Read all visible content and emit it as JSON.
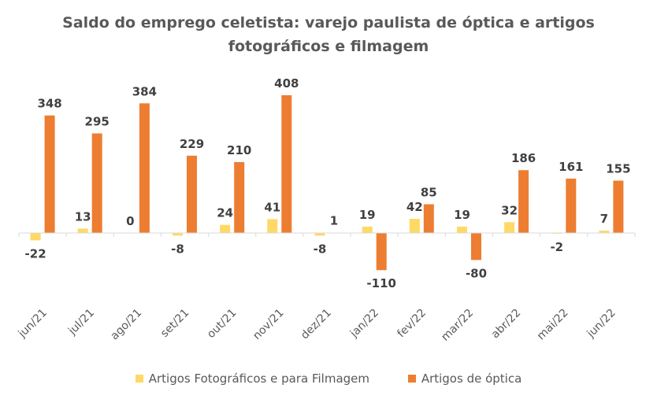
{
  "chart_data": {
    "type": "bar",
    "title_line1": "Saldo do emprego celetista: varejo paulista de óptica e artigos",
    "title_line2": "fotográficos e filmagem",
    "categories": [
      "jun/21",
      "jul/21",
      "ago/21",
      "set/21",
      "out/21",
      "nov/21",
      "dez/21",
      "jan/22",
      "fev/22",
      "mar/22",
      "abr/22",
      "mai/22",
      "jun/22"
    ],
    "series": [
      {
        "name": "Artigos Fotográficos e para Filmagem",
        "color": "#FFD966",
        "values": [
          -22,
          13,
          0,
          -8,
          24,
          41,
          -8,
          19,
          42,
          19,
          32,
          -2,
          7
        ]
      },
      {
        "name": "Artigos de óptica",
        "color": "#ED7D31",
        "values": [
          348,
          295,
          384,
          229,
          210,
          408,
          1,
          -110,
          85,
          -80,
          186,
          161,
          155
        ]
      }
    ],
    "data_labels": [
      {
        "series": 0,
        "index": 0,
        "text": "-22"
      },
      {
        "series": 0,
        "index": 1,
        "text": "13"
      },
      {
        "series": 0,
        "index": 2,
        "text": "0"
      },
      {
        "series": 0,
        "index": 3,
        "text": "-8"
      },
      {
        "series": 0,
        "index": 4,
        "text": "24"
      },
      {
        "series": 0,
        "index": 5,
        "text": "41"
      },
      {
        "series": 0,
        "index": 6,
        "text": "-8"
      },
      {
        "series": 0,
        "index": 7,
        "text": "19"
      },
      {
        "series": 0,
        "index": 8,
        "text": "42"
      },
      {
        "series": 0,
        "index": 9,
        "text": "19"
      },
      {
        "series": 0,
        "index": 10,
        "text": "32"
      },
      {
        "series": 0,
        "index": 11,
        "text": "-2"
      },
      {
        "series": 0,
        "index": 12,
        "text": "7"
      },
      {
        "series": 1,
        "index": 0,
        "text": "348"
      },
      {
        "series": 1,
        "index": 1,
        "text": "295"
      },
      {
        "series": 1,
        "index": 2,
        "text": "384"
      },
      {
        "series": 1,
        "index": 3,
        "text": "229"
      },
      {
        "series": 1,
        "index": 4,
        "text": "210"
      },
      {
        "series": 1,
        "index": 5,
        "text": "408"
      },
      {
        "series": 1,
        "index": 6,
        "text": "1"
      },
      {
        "series": 1,
        "index": 7,
        "text": "-110"
      },
      {
        "series": 1,
        "index": 8,
        "text": "85"
      },
      {
        "series": 1,
        "index": 9,
        "text": "-80"
      },
      {
        "series": 1,
        "index": 10,
        "text": "186"
      },
      {
        "series": 1,
        "index": 11,
        "text": "161"
      },
      {
        "series": 1,
        "index": 12,
        "text": "155"
      }
    ],
    "ylim": [
      -130,
      430
    ],
    "grid": false,
    "legend_position": "bottom"
  }
}
